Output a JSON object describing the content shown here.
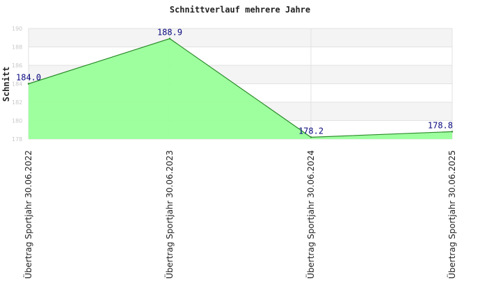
{
  "chart_data": {
    "type": "area",
    "title": "Schnittverlauf mehrere Jahre",
    "xlabel": "",
    "ylabel": "Schnitt",
    "categories": [
      "Übertrag Sportjahr 30.06.2022",
      "Übertrag Sportjahr 30.06.2023",
      "Übertrag Sportjahr 30.06.2024",
      "Übertrag Sportjahr 30.06.2025"
    ],
    "values": [
      184.0,
      188.9,
      178.2,
      178.8
    ],
    "value_labels": [
      "184.0",
      "188.9",
      "178.2",
      "178.8"
    ],
    "ylim": [
      178,
      190
    ],
    "yticks": [
      178,
      180,
      182,
      184,
      186,
      188,
      190
    ],
    "ytick_labels": [
      "178",
      "180",
      "182",
      "184",
      "186",
      "188",
      "190"
    ],
    "grid": true,
    "band_colors": [
      "#f4f4f4",
      "#ffffff"
    ],
    "fill_color": "#99ff99",
    "line_color": "#2a8a2a",
    "label_color": "#0a0a80"
  }
}
